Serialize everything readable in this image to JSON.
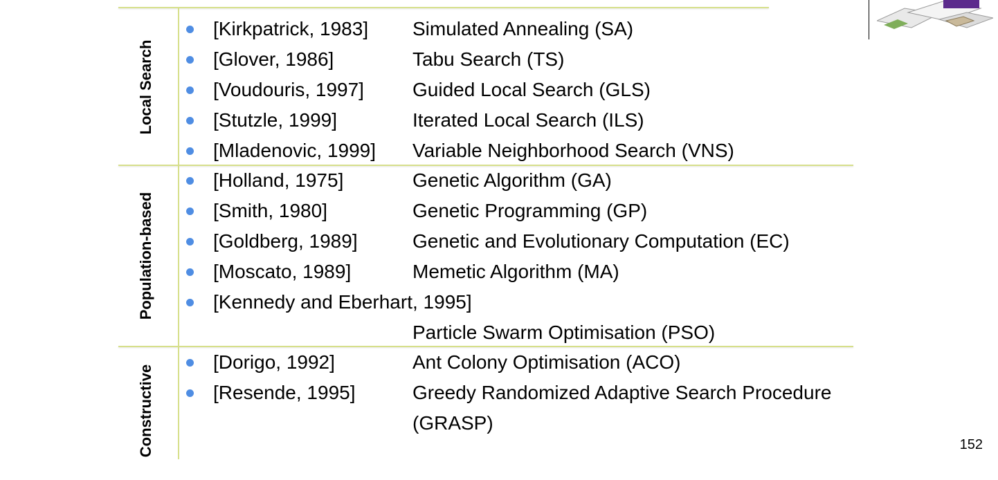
{
  "categories": [
    {
      "label": "Local Search"
    },
    {
      "label": "Population-based"
    },
    {
      "label": "Constructive"
    }
  ],
  "rows": [
    {
      "ref": "[Kirkpatrick, 1983]",
      "algo": "Simulated Annealing (SA)"
    },
    {
      "ref": "[Glover, 1986]",
      "algo": "Tabu Search (TS)"
    },
    {
      "ref": "[Voudouris, 1997]",
      "algo": "Guided Local Search (GLS)"
    },
    {
      "ref": "[Stutzle, 1999]",
      "algo": "Iterated Local Search (ILS)"
    },
    {
      "ref": "[Mladenovic, 1999]",
      "algo": "Variable Neighborhood Search (VNS)"
    },
    {
      "ref": "[Holland,  1975]",
      "algo": "Genetic Algorithm (GA)"
    },
    {
      "ref": "[Smith, 1980]",
      "algo": "Genetic Programming (GP)"
    },
    {
      "ref": "[Goldberg, 1989]",
      "algo": "Genetic and Evolutionary Computation (EC)"
    },
    {
      "ref": "[Moscato, 1989]",
      "algo": "Memetic Algorithm (MA)"
    },
    {
      "ref": "[Kennedy and Eberhart, 1995]",
      "algo": ""
    },
    {
      "ref": "",
      "algo": "Particle Swarm Optimisation (PSO)"
    },
    {
      "ref": "[Dorigo, 1992]",
      "algo": "Ant Colony Optimisation (ACO)"
    },
    {
      "ref": "[Resende, 1995]",
      "algo": "Greedy Randomized Adaptive Search Procedure"
    },
    {
      "ref": "",
      "algo": "(GRASP)"
    }
  ],
  "page_number": "152",
  "colors": {
    "bullet": "#4f8de3",
    "rule": "#d6df8a"
  }
}
